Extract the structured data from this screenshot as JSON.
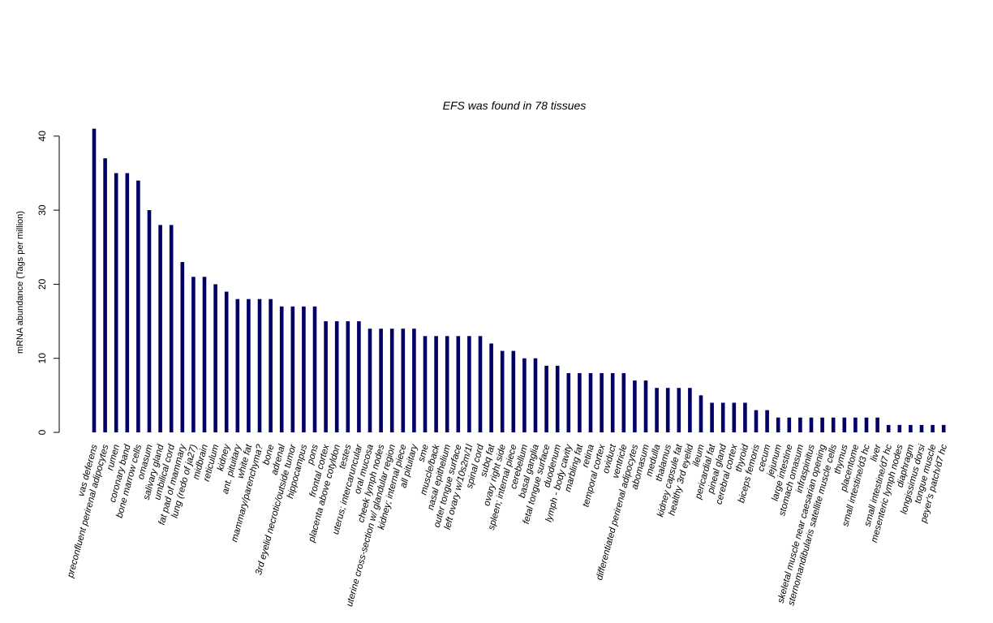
{
  "chart_data": {
    "type": "bar",
    "title": "EFS  was found in  78  tissues",
    "xlabel": "",
    "ylabel": "mRNA abundance (Tags per million)",
    "ylim": [
      0,
      41
    ],
    "yticks": [
      0,
      10,
      20,
      30,
      40
    ],
    "bar_color": "#000066",
    "grid": false,
    "categories": [
      "vas deferens",
      "preconfluent perirenal adipocytes",
      "rumen",
      "coronary band",
      "bone marrow cells",
      "omasum",
      "salivary gland",
      "umbilical cord",
      "fat pad of mammary",
      "lung (redo of ja27)",
      "midbrain",
      "reticulum",
      "kidney",
      "ant. pituitary",
      "white fat",
      "mammary/parenchyma?",
      "bone",
      "adrenal",
      "3rd eyelid necrotic/outside tumor",
      "hippocampus",
      "pons",
      "frontal cortex",
      "placenta above cotyldon",
      "testes",
      "uterus; intercaruncular",
      "oral mucosa",
      "cheek lymph nodes",
      "uterine cross-section w/ glandular region",
      "kidney; internal piece",
      "all pituitary",
      "sme",
      "muscle/back",
      "nasal epithelium",
      "outer tongue surface",
      "left ovary w/10s2m/1l",
      "spinal cord",
      "subq fat",
      "ovary right side",
      "spleen; internal piece",
      "cerebellum",
      "basal ganglia",
      "fetal tongue surface",
      "duodenum",
      "lymph - body cavity",
      "marbling fat",
      "retina",
      "temporal cortex",
      "oviduct",
      "ventricle",
      "differentiated perirenal adipocytes",
      "abomasum",
      "medulla",
      "thalamus",
      "kidney capsule fat",
      "healthy 3rd eyelid",
      "ileum",
      "pericardial fat",
      "pineal gland",
      "cerebral cortex",
      "thyroid",
      "biceps femoris",
      "cecum",
      "jejunum",
      "large intestine",
      "stomach omasum",
      "infraspinitus",
      "skeletal muscle near caesarian opening",
      "sternomandibularis satellite muscle cells",
      "thymus",
      "placentome",
      "small intestine/d3 hc",
      "liver",
      "small intestine/d7 hc",
      "mesenteric lymph nodes",
      "diaphragm",
      "longissimus dorsi",
      "tongue muscle",
      "peyer's patch/d7 hc"
    ],
    "values": [
      41,
      37,
      35,
      35,
      34,
      30,
      28,
      28,
      23,
      21,
      21,
      20,
      19,
      18,
      18,
      18,
      18,
      17,
      17,
      17,
      17,
      15,
      15,
      15,
      15,
      14,
      14,
      14,
      14,
      14,
      13,
      13,
      13,
      13,
      13,
      13,
      12,
      11,
      11,
      10,
      10,
      9,
      9,
      8,
      8,
      8,
      8,
      8,
      8,
      7,
      7,
      6,
      6,
      6,
      6,
      5,
      4,
      4,
      4,
      4,
      3,
      3,
      2,
      2,
      2,
      2,
      2,
      2,
      2,
      2,
      2,
      2,
      1,
      1,
      1,
      1,
      1,
      1
    ]
  }
}
